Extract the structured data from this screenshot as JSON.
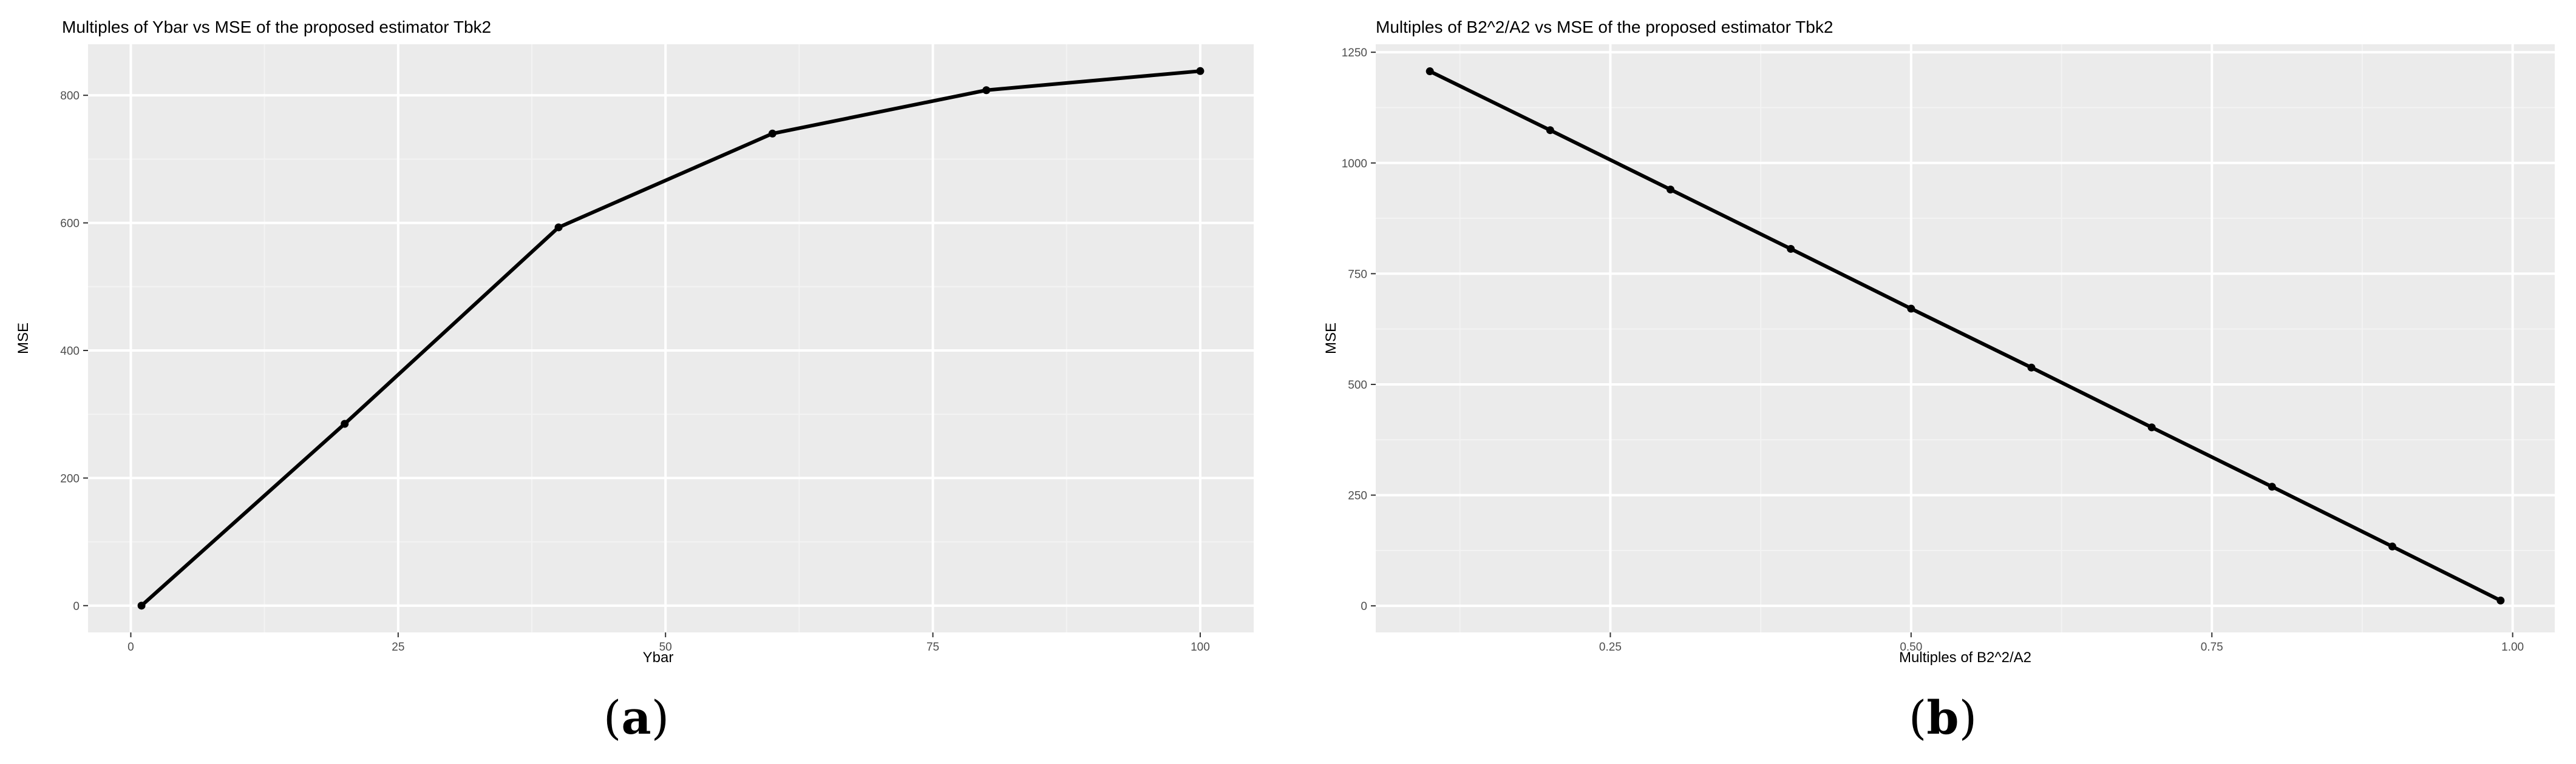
{
  "colors": {
    "panel_bg": "#ebebeb",
    "grid_major": "#ffffff",
    "grid_minor": "#f3f3f3",
    "line": "#000000",
    "tick_text": "#4d4d4d"
  },
  "chart_data": [
    {
      "type": "line",
      "title": "Multiples of Ybar vs MSE of the proposed estimator Tbk2",
      "xlabel": "Ybar",
      "ylabel": "MSE",
      "x": [
        1,
        20,
        40,
        60,
        80,
        100
      ],
      "series": [
        {
          "values": [
            0,
            285,
            593,
            740,
            808,
            838
          ]
        }
      ],
      "xlim": [
        -4,
        105
      ],
      "ylim": [
        -42,
        880
      ],
      "xticks": [
        0,
        25,
        50,
        75,
        100
      ],
      "xtick_labels": [
        "0",
        "25",
        "50",
        "75",
        "100"
      ],
      "yticks": [
        0,
        200,
        400,
        600,
        800
      ],
      "ytick_labels": [
        "0",
        "200",
        "400",
        "600",
        "800"
      ],
      "grid": true,
      "panel_label": {
        "open": "(",
        "letter": "a",
        "close": ")"
      }
    },
    {
      "type": "line",
      "title": "Multiples of B2^2/A2 vs MSE of the proposed estimator Tbk2",
      "xlabel": "Multiples of B2^2/A2",
      "ylabel": "MSE",
      "x": [
        0.1,
        0.2,
        0.3,
        0.4,
        0.5,
        0.6,
        0.7,
        0.8,
        0.9,
        0.99
      ],
      "series": [
        {
          "values": [
            1207,
            1074,
            940,
            806,
            671,
            538,
            403,
            269,
            134,
            12
          ]
        }
      ],
      "xlim": [
        0.055,
        1.035
      ],
      "ylim": [
        -60,
        1268
      ],
      "xticks": [
        0.25,
        0.5,
        0.75,
        1.0
      ],
      "xtick_labels": [
        "0.25",
        "0.50",
        "0.75",
        "1.00"
      ],
      "yticks": [
        0,
        250,
        500,
        750,
        1000,
        1250
      ],
      "ytick_labels": [
        "0",
        "250",
        "500",
        "750",
        "1000",
        "1250"
      ],
      "grid": true,
      "panel_label": {
        "open": "(",
        "letter": "b",
        "close": ")"
      }
    }
  ]
}
